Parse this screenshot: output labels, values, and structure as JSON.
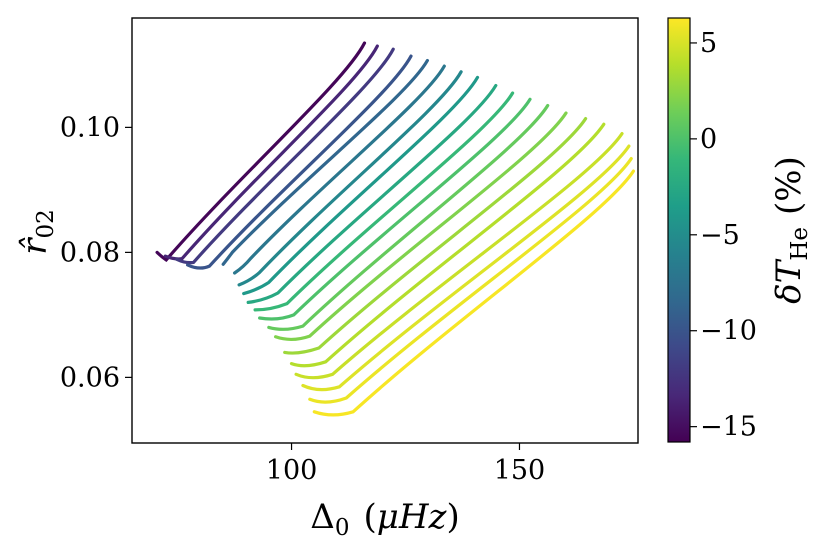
{
  "chart_data": {
    "type": "line",
    "xlabel": {
      "symbol": "Δ",
      "sub": "0",
      "unit_open": "(",
      "unit": "μHz",
      "unit_close": ")"
    },
    "ylabel": {
      "symbol": "r̂",
      "sub": "02"
    },
    "xlim": [
      65,
      176
    ],
    "ylim": [
      0.0495,
      0.1175
    ],
    "xticks": [
      {
        "value": 100,
        "label": "100"
      },
      {
        "value": 150,
        "label": "150"
      }
    ],
    "yticks": [
      {
        "value": 0.06,
        "label": "0.06"
      },
      {
        "value": 0.08,
        "label": "0.08"
      },
      {
        "value": 0.1,
        "label": "0.10"
      }
    ],
    "grid": false,
    "colorbar": {
      "label": {
        "symbol": "δT",
        "sub": "He",
        "unit": "(%)"
      },
      "range": [
        -15.8,
        6.3
      ],
      "ticks": [
        {
          "value": 5,
          "label": "5"
        },
        {
          "value": 0,
          "label": "0"
        },
        {
          "value": -5,
          "label": "−5"
        },
        {
          "value": -10,
          "label": "−10"
        },
        {
          "value": -15,
          "label": "−15"
        }
      ],
      "colormap": "viridis",
      "colormap_stops": [
        "#440154",
        "#482878",
        "#3e4989",
        "#31688e",
        "#26828e",
        "#1f9e89",
        "#35b779",
        "#6ece58",
        "#b5de2b",
        "#fde725"
      ]
    },
    "series": [
      {
        "dT": -15.5,
        "x": [
          70.5,
          71.5,
          72.5,
          116.0
        ],
        "y": [
          0.08,
          0.0793,
          0.0788,
          0.1135
        ]
      },
      {
        "dT": -13.5,
        "x": [
          72.3,
          74.5,
          76.0,
          118.8
        ],
        "y": [
          0.0794,
          0.0788,
          0.079,
          0.113
        ]
      },
      {
        "dT": -12.0,
        "x": [
          74.8,
          76.8,
          78.5,
          122.3
        ],
        "y": [
          0.0789,
          0.0782,
          0.0784,
          0.1125
        ]
      },
      {
        "dT": -10.0,
        "x": [
          77.2,
          79.8,
          82.0,
          126.2
        ],
        "y": [
          0.078,
          0.0771,
          0.0778,
          0.1114
        ]
      },
      {
        "dT": -8.5,
        "x": [
          85.0,
          86.0,
          87.0,
          129.8
        ],
        "y": [
          0.0781,
          0.079,
          0.08,
          0.1107
        ]
      },
      {
        "dT": -7.0,
        "x": [
          87.5,
          89.5,
          91.0,
          133.5
        ],
        "y": [
          0.0767,
          0.0777,
          0.079,
          0.1098
        ]
      },
      {
        "dT": -5.5,
        "x": [
          88.5,
          91.0,
          93.0,
          137.2
        ],
        "y": [
          0.0748,
          0.0755,
          0.0768,
          0.1089
        ]
      },
      {
        "dT": -4.0,
        "x": [
          89.5,
          92.5,
          95.0,
          140.8
        ],
        "y": [
          0.0734,
          0.074,
          0.0752,
          0.108
        ]
      },
      {
        "dT": -2.5,
        "x": [
          90.5,
          94.0,
          97.0,
          144.8
        ],
        "y": [
          0.072,
          0.0723,
          0.0735,
          0.1067
        ]
      },
      {
        "dT": -1.0,
        "x": [
          92.0,
          95.5,
          99.0,
          148.5
        ],
        "y": [
          0.0708,
          0.0708,
          0.0718,
          0.1055
        ]
      },
      {
        "dT": 0.0,
        "x": [
          93.0,
          97.0,
          100.5,
          152.3
        ],
        "y": [
          0.0695,
          0.069,
          0.07,
          0.1045
        ]
      },
      {
        "dT": 1.0,
        "x": [
          95.0,
          98.5,
          102.5,
          156.2
        ],
        "y": [
          0.068,
          0.0673,
          0.0682,
          0.1035
        ]
      },
      {
        "dT": 2.0,
        "x": [
          96.5,
          100.0,
          104.0,
          160.2
        ],
        "y": [
          0.0665,
          0.0656,
          0.0666,
          0.1023
        ]
      },
      {
        "dT": 3.0,
        "x": [
          98.5,
          101.5,
          106.0,
          164.5
        ],
        "y": [
          0.064,
          0.0636,
          0.0647,
          0.1014
        ]
      },
      {
        "dT": 3.8,
        "x": [
          100.0,
          103.0,
          107.5,
          168.5
        ],
        "y": [
          0.0622,
          0.0614,
          0.0625,
          0.1005
        ]
      },
      {
        "dT": 4.5,
        "x": [
          101.0,
          104.5,
          109.0,
          172.5
        ],
        "y": [
          0.0605,
          0.0594,
          0.0605,
          0.099
        ]
      },
      {
        "dT": 5.2,
        "x": [
          102.5,
          106.0,
          110.5,
          174.0
        ],
        "y": [
          0.0587,
          0.0575,
          0.0585,
          0.097
        ]
      },
      {
        "dT": 5.7,
        "x": [
          104.0,
          107.5,
          112.0,
          174.5
        ],
        "y": [
          0.0565,
          0.0555,
          0.0567,
          0.095
        ]
      },
      {
        "dT": 6.1,
        "x": [
          105.0,
          109.0,
          113.5,
          175.0
        ],
        "y": [
          0.0545,
          0.0535,
          0.0545,
          0.093
        ]
      }
    ]
  }
}
